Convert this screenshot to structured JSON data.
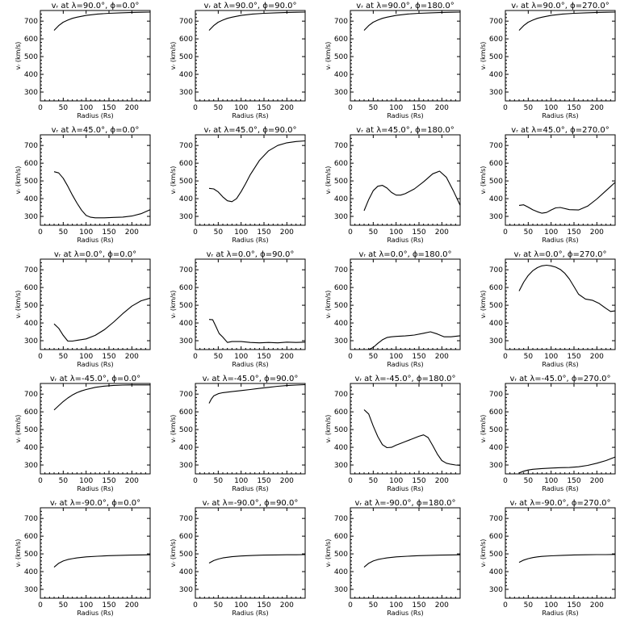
{
  "chart_data": [
    {
      "type": "line",
      "title": "vᵣ at λ=90.0°, ϕ=0.0°",
      "xlabel": "Radius (Rs)",
      "ylabel": "vᵣ (km/s)",
      "xlim": [
        0,
        240
      ],
      "ylim": [
        250,
        760
      ],
      "xticks": [
        0,
        50,
        100,
        150,
        200
      ],
      "yticks": [
        300,
        400,
        500,
        600,
        700
      ],
      "x": [
        30,
        40,
        50,
        60,
        70,
        80,
        100,
        125,
        150,
        175,
        200,
        220,
        240
      ],
      "y": [
        648,
        675,
        694,
        706,
        716,
        722,
        732,
        740,
        744,
        747,
        749,
        750,
        751
      ]
    },
    {
      "type": "line",
      "title": "vᵣ at λ=90.0°, ϕ=90.0°",
      "xlabel": "Radius (Rs)",
      "ylabel": "vᵣ (km/s)",
      "xlim": [
        0,
        240
      ],
      "ylim": [
        250,
        760
      ],
      "xticks": [
        0,
        50,
        100,
        150,
        200
      ],
      "yticks": [
        300,
        400,
        500,
        600,
        700
      ],
      "x": [
        30,
        40,
        50,
        60,
        70,
        80,
        100,
        125,
        150,
        175,
        200,
        220,
        240
      ],
      "y": [
        648,
        675,
        694,
        706,
        716,
        722,
        732,
        740,
        744,
        747,
        749,
        750,
        751
      ]
    },
    {
      "type": "line",
      "title": "vᵣ at λ=90.0°, ϕ=180.0°",
      "xlabel": "Radius (Rs)",
      "ylabel": "vᵣ (km/s)",
      "xlim": [
        0,
        240
      ],
      "ylim": [
        250,
        760
      ],
      "xticks": [
        0,
        50,
        100,
        150,
        200
      ],
      "yticks": [
        300,
        400,
        500,
        600,
        700
      ],
      "x": [
        30,
        40,
        50,
        60,
        70,
        80,
        100,
        125,
        150,
        175,
        200,
        220,
        240
      ],
      "y": [
        648,
        675,
        694,
        706,
        716,
        722,
        732,
        740,
        744,
        747,
        749,
        750,
        751
      ]
    },
    {
      "type": "line",
      "title": "vᵣ at λ=90.0°, ϕ=270.0°",
      "xlabel": "Radius (Rs)",
      "ylabel": "vᵣ (km/s)",
      "xlim": [
        0,
        240
      ],
      "ylim": [
        250,
        760
      ],
      "xticks": [
        0,
        50,
        100,
        150,
        200
      ],
      "yticks": [
        300,
        400,
        500,
        600,
        700
      ],
      "x": [
        30,
        40,
        50,
        60,
        70,
        80,
        100,
        125,
        150,
        175,
        200,
        220,
        240
      ],
      "y": [
        648,
        675,
        694,
        706,
        716,
        722,
        732,
        740,
        744,
        747,
        749,
        750,
        751
      ]
    },
    {
      "type": "line",
      "title": "vᵣ at λ=45.0°, ϕ=0.0°",
      "xlabel": "Radius (Rs)",
      "ylabel": "vᵣ (km/s)",
      "xlim": [
        0,
        240
      ],
      "ylim": [
        250,
        760
      ],
      "xticks": [
        0,
        50,
        100,
        150,
        200
      ],
      "yticks": [
        300,
        400,
        500,
        600,
        700
      ],
      "x": [
        30,
        40,
        50,
        60,
        70,
        80,
        90,
        100,
        110,
        120,
        140,
        160,
        180,
        200,
        220,
        240
      ],
      "y": [
        552,
        545,
        515,
        470,
        420,
        375,
        335,
        305,
        295,
        292,
        292,
        294,
        296,
        302,
        315,
        338
      ]
    },
    {
      "type": "line",
      "title": "vᵣ at λ=45.0°, ϕ=90.0°",
      "xlabel": "Radius (Rs)",
      "ylabel": "vᵣ (km/s)",
      "xlim": [
        0,
        240
      ],
      "ylim": [
        250,
        760
      ],
      "xticks": [
        0,
        50,
        100,
        150,
        200
      ],
      "yticks": [
        300,
        400,
        500,
        600,
        700
      ],
      "x": [
        30,
        40,
        50,
        60,
        70,
        80,
        90,
        100,
        110,
        120,
        140,
        160,
        180,
        200,
        220,
        240
      ],
      "y": [
        458,
        455,
        438,
        410,
        388,
        383,
        400,
        440,
        485,
        535,
        615,
        670,
        700,
        715,
        722,
        726
      ]
    },
    {
      "type": "line",
      "title": "vᵣ at λ=45.0°, ϕ=180.0°",
      "xlabel": "Radius (Rs)",
      "ylabel": "vᵣ (km/s)",
      "xlim": [
        0,
        240
      ],
      "ylim": [
        250,
        760
      ],
      "xticks": [
        0,
        50,
        100,
        150,
        200
      ],
      "yticks": [
        300,
        400,
        500,
        600,
        700
      ],
      "x": [
        30,
        40,
        50,
        60,
        70,
        80,
        90,
        100,
        110,
        120,
        140,
        160,
        180,
        195,
        210,
        225,
        240
      ],
      "y": [
        332,
        395,
        445,
        470,
        475,
        460,
        435,
        420,
        420,
        428,
        455,
        495,
        540,
        555,
        520,
        445,
        362
      ]
    },
    {
      "type": "line",
      "title": "vᵣ at λ=45.0°, ϕ=270.0°",
      "xlabel": "Radius (Rs)",
      "ylabel": "vᵣ (km/s)",
      "xlim": [
        0,
        240
      ],
      "ylim": [
        250,
        760
      ],
      "xticks": [
        0,
        50,
        100,
        150,
        200
      ],
      "yticks": [
        300,
        400,
        500,
        600,
        700
      ],
      "x": [
        30,
        40,
        50,
        60,
        70,
        80,
        90,
        100,
        110,
        120,
        140,
        160,
        180,
        200,
        220,
        240
      ],
      "y": [
        362,
        365,
        352,
        337,
        326,
        318,
        322,
        336,
        348,
        350,
        338,
        336,
        358,
        398,
        445,
        492
      ]
    },
    {
      "type": "line",
      "title": "vᵣ at λ=0.0°, ϕ=0.0°",
      "xlabel": "Radius (Rs)",
      "ylabel": "vᵣ (km/s)",
      "xlim": [
        0,
        240
      ],
      "ylim": [
        250,
        760
      ],
      "xticks": [
        0,
        50,
        100,
        150,
        200
      ],
      "yticks": [
        300,
        400,
        500,
        600,
        700
      ],
      "x": [
        30,
        40,
        50,
        60,
        70,
        80,
        100,
        120,
        140,
        160,
        180,
        200,
        220,
        240
      ],
      "y": [
        395,
        370,
        330,
        298,
        298,
        302,
        310,
        330,
        362,
        405,
        452,
        495,
        525,
        540
      ]
    },
    {
      "type": "line",
      "title": "vᵣ at λ=0.0°, ϕ=90.0°",
      "xlabel": "Radius (Rs)",
      "ylabel": "vᵣ (km/s)",
      "xlim": [
        0,
        240
      ],
      "ylim": [
        250,
        760
      ],
      "xticks": [
        0,
        50,
        100,
        150,
        200
      ],
      "yticks": [
        300,
        400,
        500,
        600,
        700
      ],
      "x": [
        30,
        38,
        45,
        52,
        60,
        70,
        80,
        100,
        120,
        140,
        160,
        180,
        200,
        220,
        240
      ],
      "y": [
        420,
        418,
        380,
        340,
        320,
        290,
        295,
        295,
        290,
        288,
        290,
        288,
        292,
        290,
        292
      ]
    },
    {
      "type": "line",
      "title": "vᵣ at λ=0.0°, ϕ=180.0°",
      "xlabel": "Radius (Rs)",
      "ylabel": "vᵣ (km/s)",
      "xlim": [
        0,
        240
      ],
      "ylim": [
        250,
        760
      ],
      "xticks": [
        0,
        50,
        100,
        150,
        200
      ],
      "yticks": [
        300,
        400,
        500,
        600,
        700
      ],
      "x": [
        30,
        40,
        50,
        60,
        70,
        80,
        90,
        100,
        120,
        140,
        160,
        175,
        190,
        205,
        220,
        240
      ],
      "y": [
        250,
        250,
        262,
        285,
        305,
        318,
        322,
        324,
        327,
        332,
        342,
        350,
        338,
        322,
        322,
        328
      ]
    },
    {
      "type": "line",
      "title": "vᵣ at λ=0.0°, ϕ=270.0°",
      "xlabel": "Radius (Rs)",
      "ylabel": "vᵣ (km/s)",
      "xlim": [
        0,
        240
      ],
      "ylim": [
        250,
        760
      ],
      "xticks": [
        0,
        50,
        100,
        150,
        200
      ],
      "yticks": [
        300,
        400,
        500,
        600,
        700
      ],
      "x": [
        30,
        40,
        50,
        60,
        70,
        80,
        90,
        100,
        110,
        120,
        130,
        140,
        150,
        160,
        175,
        190,
        205,
        220,
        230,
        240
      ],
      "y": [
        580,
        630,
        668,
        695,
        712,
        722,
        726,
        722,
        715,
        702,
        680,
        648,
        605,
        562,
        535,
        528,
        510,
        482,
        465,
        468
      ]
    },
    {
      "type": "line",
      "title": "vᵣ at λ=-45.0°, ϕ=0.0°",
      "xlabel": "Radius (Rs)",
      "ylabel": "vᵣ (km/s)",
      "xlim": [
        0,
        240
      ],
      "ylim": [
        250,
        760
      ],
      "xticks": [
        0,
        50,
        100,
        150,
        200
      ],
      "yticks": [
        300,
        400,
        500,
        600,
        700
      ],
      "x": [
        30,
        40,
        50,
        60,
        70,
        80,
        90,
        100,
        120,
        140,
        160,
        180,
        200,
        220,
        240
      ],
      "y": [
        610,
        635,
        658,
        678,
        695,
        708,
        718,
        726,
        738,
        745,
        749,
        751,
        752,
        752,
        752
      ]
    },
    {
      "type": "line",
      "title": "vᵣ at λ=-45.0°, ϕ=90.0°",
      "xlabel": "Radius (Rs)",
      "ylabel": "vᵣ (km/s)",
      "xlim": [
        0,
        240
      ],
      "ylim": [
        250,
        760
      ],
      "xticks": [
        0,
        50,
        100,
        150,
        200
      ],
      "yticks": [
        300,
        400,
        500,
        600,
        700
      ],
      "x": [
        30,
        35,
        40,
        50,
        60,
        80,
        100,
        120,
        140,
        160,
        180,
        200,
        220,
        240
      ],
      "y": [
        648,
        672,
        690,
        702,
        708,
        714,
        720,
        726,
        732,
        738,
        744,
        748,
        751,
        753
      ]
    },
    {
      "type": "line",
      "title": "vᵣ at λ=-45.0°, ϕ=180.0°",
      "xlabel": "Radius (Rs)",
      "ylabel": "vᵣ (km/s)",
      "xlim": [
        0,
        240
      ],
      "ylim": [
        250,
        760
      ],
      "xticks": [
        0,
        50,
        100,
        150,
        200
      ],
      "yticks": [
        300,
        400,
        500,
        600,
        700
      ],
      "x": [
        30,
        40,
        50,
        60,
        70,
        80,
        90,
        100,
        110,
        120,
        130,
        140,
        150,
        160,
        170,
        180,
        190,
        200,
        210,
        220,
        230,
        240
      ],
      "y": [
        612,
        588,
        520,
        460,
        415,
        398,
        400,
        412,
        422,
        432,
        442,
        452,
        462,
        470,
        455,
        410,
        362,
        325,
        310,
        304,
        300,
        298
      ]
    },
    {
      "type": "line",
      "title": "vᵣ at λ=-45.0°, ϕ=270.0°",
      "xlabel": "Radius (Rs)",
      "ylabel": "vᵣ (km/s)",
      "xlim": [
        0,
        240
      ],
      "ylim": [
        250,
        760
      ],
      "xticks": [
        0,
        50,
        100,
        150,
        200
      ],
      "yticks": [
        300,
        400,
        500,
        600,
        700
      ],
      "x": [
        30,
        40,
        50,
        60,
        80,
        100,
        120,
        140,
        160,
        180,
        200,
        220,
        240
      ],
      "y": [
        255,
        265,
        272,
        276,
        280,
        283,
        285,
        286,
        290,
        298,
        310,
        325,
        345
      ]
    },
    {
      "type": "line",
      "title": "vᵣ at λ=-90.0°, ϕ=0.0°",
      "xlabel": "Radius (Rs)",
      "ylabel": "vᵣ (km/s)",
      "xlim": [
        0,
        240
      ],
      "ylim": [
        250,
        760
      ],
      "xticks": [
        0,
        50,
        100,
        150,
        200
      ],
      "yticks": [
        300,
        400,
        500,
        600,
        700
      ],
      "x": [
        30,
        40,
        50,
        60,
        70,
        80,
        100,
        125,
        150,
        175,
        200,
        220,
        240
      ],
      "y": [
        425,
        447,
        460,
        468,
        473,
        477,
        483,
        487,
        490,
        492,
        493,
        494,
        495
      ]
    },
    {
      "type": "line",
      "title": "vᵣ at λ=-90.0°, ϕ=90.0°",
      "xlabel": "Radius (Rs)",
      "ylabel": "vᵣ (km/s)",
      "xlim": [
        0,
        240
      ],
      "ylim": [
        250,
        760
      ],
      "xticks": [
        0,
        50,
        100,
        150,
        200
      ],
      "yticks": [
        300,
        400,
        500,
        600,
        700
      ],
      "x": [
        30,
        40,
        50,
        60,
        70,
        80,
        100,
        125,
        150,
        175,
        200,
        220,
        240
      ],
      "y": [
        448,
        462,
        471,
        477,
        481,
        484,
        488,
        491,
        493,
        494,
        495,
        495,
        496
      ]
    },
    {
      "type": "line",
      "title": "vᵣ at λ=-90.0°, ϕ=180.0°",
      "xlabel": "Radius (Rs)",
      "ylabel": "vᵣ (km/s)",
      "xlim": [
        0,
        240
      ],
      "ylim": [
        250,
        760
      ],
      "xticks": [
        0,
        50,
        100,
        150,
        200
      ],
      "yticks": [
        300,
        400,
        500,
        600,
        700
      ],
      "x": [
        30,
        40,
        50,
        60,
        70,
        80,
        100,
        125,
        150,
        175,
        200,
        220,
        240
      ],
      "y": [
        425,
        447,
        460,
        468,
        473,
        477,
        483,
        487,
        490,
        492,
        493,
        494,
        495
      ]
    },
    {
      "type": "line",
      "title": "vᵣ at λ=-90.0°, ϕ=270.0°",
      "xlabel": "Radius (Rs)",
      "ylabel": "vᵣ (km/s)",
      "xlim": [
        0,
        240
      ],
      "ylim": [
        250,
        760
      ],
      "xticks": [
        0,
        50,
        100,
        150,
        200
      ],
      "yticks": [
        300,
        400,
        500,
        600,
        700
      ],
      "x": [
        30,
        40,
        50,
        60,
        70,
        80,
        100,
        125,
        150,
        175,
        200,
        220,
        240
      ],
      "y": [
        452,
        465,
        473,
        479,
        483,
        486,
        489,
        492,
        494,
        495,
        496,
        496,
        497
      ]
    }
  ]
}
